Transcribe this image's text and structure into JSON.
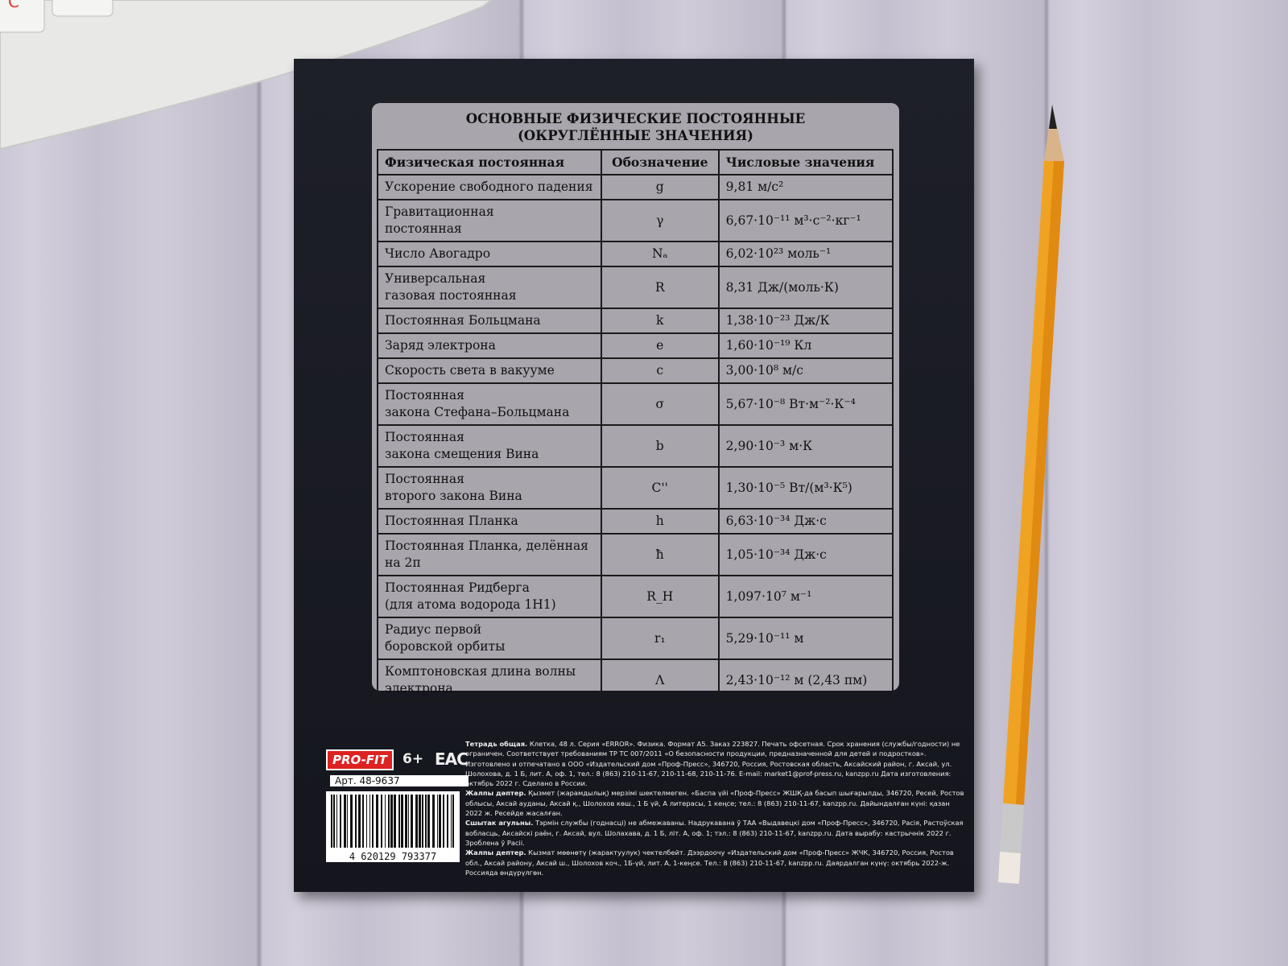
{
  "keyboard": {
    "key_label": "С"
  },
  "title": [
    "ОСНОВНЫЕ ФИЗИЧЕСКИЕ ПОСТОЯННЫЕ",
    "(ОКРУГЛЁННЫЕ ЗНАЧЕНИЯ)"
  ],
  "table": {
    "header": [
      "Физическая постоянная",
      "Обозначение",
      "Числовые значения"
    ],
    "rows": [
      [
        "Ускорение свободного падения",
        "g",
        "9,81 м/с²"
      ],
      [
        "Гравитационная\nпостоянная",
        "γ",
        "6,67·10⁻¹¹ м³·с⁻²·кг⁻¹"
      ],
      [
        "Число Авогадро",
        "Nₐ",
        "6,02·10²³ моль⁻¹"
      ],
      [
        "Универсальная\nгазовая постоянная",
        "R",
        "8,31 Дж/(моль·К)"
      ],
      [
        "Постоянная Больцмана",
        "k",
        "1,38·10⁻²³ Дж/К"
      ],
      [
        "Заряд электрона",
        "e",
        "1,60·10⁻¹⁹ Кл"
      ],
      [
        "Скорость света в вакууме",
        "c",
        "3,00·10⁸ м/с"
      ],
      [
        "Постоянная\nзакона Стефана–Больцмана",
        "σ",
        "5,67·10⁻⁸ Вт·м⁻²·К⁻⁴"
      ],
      [
        "Постоянная\nзакона смещения Вина",
        "b",
        "2,90·10⁻³ м·К"
      ],
      [
        "Постоянная\nвторого закона Вина",
        "C''",
        "1,30·10⁻⁵ Вт/(м³·К⁵)"
      ],
      [
        "Постоянная Планка",
        "h",
        "6,63·10⁻³⁴ Дж·с"
      ],
      [
        "Постоянная Планка, делённая\nна 2π",
        "ħ",
        "1,05·10⁻³⁴ Дж·с"
      ],
      [
        "Постоянная Ридберга\n(для атома водорода 1Н1)",
        "R_H",
        "1,097·10⁷ м⁻¹"
      ],
      [
        "Радиус первой\nборовской орбиты",
        "r₁",
        "5,29·10⁻¹¹ м"
      ],
      [
        "Комптоновская длина волны\nэлектрона",
        "Λ",
        "2,43·10⁻¹² м (2,43 пм)"
      ]
    ]
  },
  "footer": {
    "logo": "PRO-FIT",
    "age": "6+",
    "mark": "EAC",
    "article": "Арт. 48-9637",
    "barcode": "4 620129 793377",
    "legal": [
      {
        "lead": "Тетрадь общая.",
        "text": " Клетка, 48 л. Серия «ERROR». Физика. Формат А5. Заказ 223827. Печать офсетная. Срок хранения (службы/годности) не ограничен. Соответствует требованиям ТР ТС 007/2011 «О безопасности продукции, предназначенной для детей и подростков». Изготовлено и отпечатано в ООО «Издательский дом «Проф-Пресс», 346720, Россия, Ростовская область, Аксайский район, г. Аксай, ул. Шолохова, д. 1 Б, лит. А, оф. 1, тел.: 8 (863) 210-11-67, 210-11-68, 210-11-76. E-mail: market1@prof-press.ru, kanzpp.ru Дата изготовления: октябрь 2022 г. Сделано в России."
      },
      {
        "lead": "Жалпы дәптер.",
        "text": " Қызмет (жарамдылық) мерзімі шектелмеген. «Баспа үйі «Проф-Пресс» ЖШҚ-да басып шығарылды, 346720, Ресей, Ростов облысы, Аксай ауданы, Аксай қ., Шолохов көш., 1 Б үй, А литерасы, 1 кеңсе; тел.: 8 (863) 210-11-67, kanzpp.ru. Дайындалған күні: қазан 2022 ж. Ресейде жасалған."
      },
      {
        "lead": "Сшытак агульны.",
        "text": " Тэрмін службы (годнасці) не абмежаваны. Надрукавана ў ТАА «Выдавецкі дом «Проф-Пресс», 346720, Расія, Растоўская вобласць, Аксайскі раён, г. Аксай, вул. Шолахава, д. 1 Б, літ. А, оф. 1; тэл.: 8 (863) 210-11-67, kanzpp.ru. Дата вырабу: кастрычнік 2022 г. Зроблена ў Расіі."
      },
      {
        "lead": "Жалпы дептер.",
        "text": " Кызмат мөөнөтү (жарактуулук) чектелбейт. Дээрдоочу «Издательский дом «Проф-Пресс» ЖЧК, 346720, Россия, Ростов обл., Аксай району, Аксай ш., Шолохов коч., 1Б-үй, лит. А, 1-кеңсе. Тел.: 8 (863) 210-11-67, kanzpp.ru. Даярдалган күнү: октябрь 2022-ж. Россияда өндүрүлгөн."
      }
    ]
  }
}
